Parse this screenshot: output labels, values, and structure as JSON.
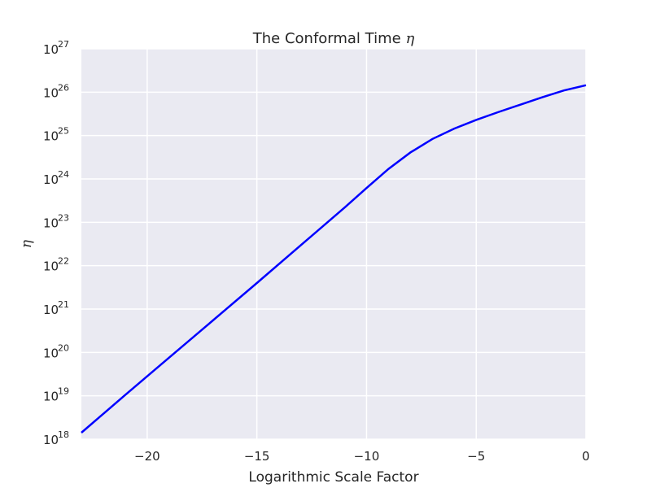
{
  "chart_data": {
    "type": "line",
    "title_text": "The Conformal Time",
    "title_symbol": "η",
    "xlabel": "Logarithmic Scale Factor",
    "ylabel": "η",
    "xlim": [
      -23,
      0
    ],
    "ylim": [
      1e+18,
      1e+27
    ],
    "yscale": "log",
    "grid": true,
    "x_ticks": [
      -20,
      -15,
      -10,
      -5,
      0
    ],
    "x_tick_labels": [
      "−20",
      "−15",
      "−10",
      "−5",
      "0"
    ],
    "y_tick_exponents": [
      18,
      19,
      20,
      21,
      22,
      23,
      24,
      25,
      26,
      27
    ],
    "y_tick_base": "10",
    "series": [
      {
        "color": "#0000ff",
        "x": [
          -23,
          -21,
          -19,
          -17,
          -15,
          -13,
          -11,
          -10,
          -9,
          -8,
          -7,
          -6,
          -5,
          -4,
          -3,
          -2,
          -1,
          0
        ],
        "log10_y": [
          18.15,
          19.02,
          19.88,
          20.74,
          21.6,
          22.47,
          23.34,
          23.79,
          24.23,
          24.61,
          24.92,
          25.16,
          25.36,
          25.54,
          25.71,
          25.88,
          26.04,
          26.16
        ]
      }
    ]
  },
  "colors": {
    "plot_background": "#eaeaf2",
    "grid": "#ffffff",
    "line": "#0000ff"
  }
}
